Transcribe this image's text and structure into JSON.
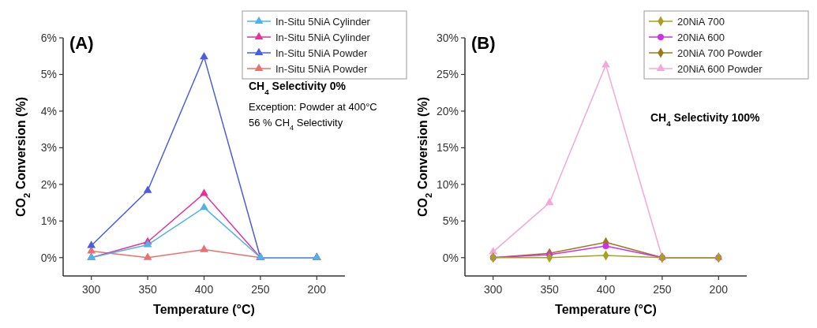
{
  "chart_data": [
    {
      "type": "line",
      "title": "(A)",
      "xlabel": "Temperature (°C)",
      "ylabel": "CO$_{2}$ Conversion (%)",
      "categories": [
        "300",
        "350",
        "400",
        "250",
        "200"
      ],
      "ylim": [
        -0.5,
        6
      ],
      "yticks": [
        {
          "value": 0,
          "label": "0%"
        },
        {
          "value": 1,
          "label": "1%"
        },
        {
          "value": 2,
          "label": "2%"
        },
        {
          "value": 3,
          "label": "3%"
        },
        {
          "value": 4,
          "label": "4%"
        },
        {
          "value": 5,
          "label": "5%"
        },
        {
          "value": 6,
          "label": "6%"
        }
      ],
      "legend": "top right",
      "grid": false,
      "annotations": [
        "CH$_{4}$ Selectivity 0%",
        "Exception: Powder at 400°C",
        "56 % CH$_{4}$ Selectivity"
      ],
      "series": [
        {
          "name": "In-Situ 5NiA Cylinder",
          "color": "#4fb3e8",
          "marker": "triangle",
          "values": [
            0,
            0.35,
            1.37,
            0,
            0
          ]
        },
        {
          "name": "In-Situ 5NiA Cylinder",
          "color": "#e0359a",
          "marker": "triangle",
          "values": [
            0,
            0.43,
            1.75,
            0,
            0
          ]
        },
        {
          "name": "In-Situ 5NiA Powder",
          "color": "#4b5ce0",
          "marker": "triangle",
          "values": [
            0.33,
            1.83,
            5.48,
            0,
            0
          ]
        },
        {
          "name": "In-Situ 5NiA Powder",
          "color": "#e8706e",
          "marker": "triangle",
          "values": [
            0.18,
            0,
            0.22,
            0,
            0
          ]
        }
      ]
    },
    {
      "type": "line",
      "title": "(B)",
      "xlabel": "Temperature (°C)",
      "ylabel": "CO$_{2}$ Conversion (%)",
      "categories": [
        "300",
        "350",
        "400",
        "250",
        "200"
      ],
      "ylim": [
        -2.5,
        30
      ],
      "yticks": [
        {
          "value": 0,
          "label": "0%"
        },
        {
          "value": 5,
          "label": "5%"
        },
        {
          "value": 10,
          "label": "10%"
        },
        {
          "value": 15,
          "label": "15%"
        },
        {
          "value": 20,
          "label": "20%"
        },
        {
          "value": 25,
          "label": "25%"
        },
        {
          "value": 30,
          "label": "30%"
        }
      ],
      "legend": "top right",
      "grid": false,
      "annotations": [
        "CH$_{4}$ Selectivity 100%"
      ],
      "series": [
        {
          "name": "20NiA 700",
          "color": "#a8a020",
          "marker": "diamond",
          "values": [
            0,
            0,
            0.3,
            0,
            0
          ]
        },
        {
          "name": "20NiA 600",
          "color": "#d030e0",
          "marker": "circle",
          "values": [
            0,
            0.4,
            1.6,
            0,
            0
          ]
        },
        {
          "name": "20NiA 700 Powder",
          "color": "#9a7a18",
          "marker": "diamond",
          "values": [
            0,
            0.6,
            2.1,
            0,
            0
          ]
        },
        {
          "name": "20NiA 600 Powder",
          "color": "#f2a8d8",
          "marker": "triangle",
          "values": [
            0.8,
            7.5,
            26.3,
            0,
            0
          ]
        }
      ]
    }
  ]
}
